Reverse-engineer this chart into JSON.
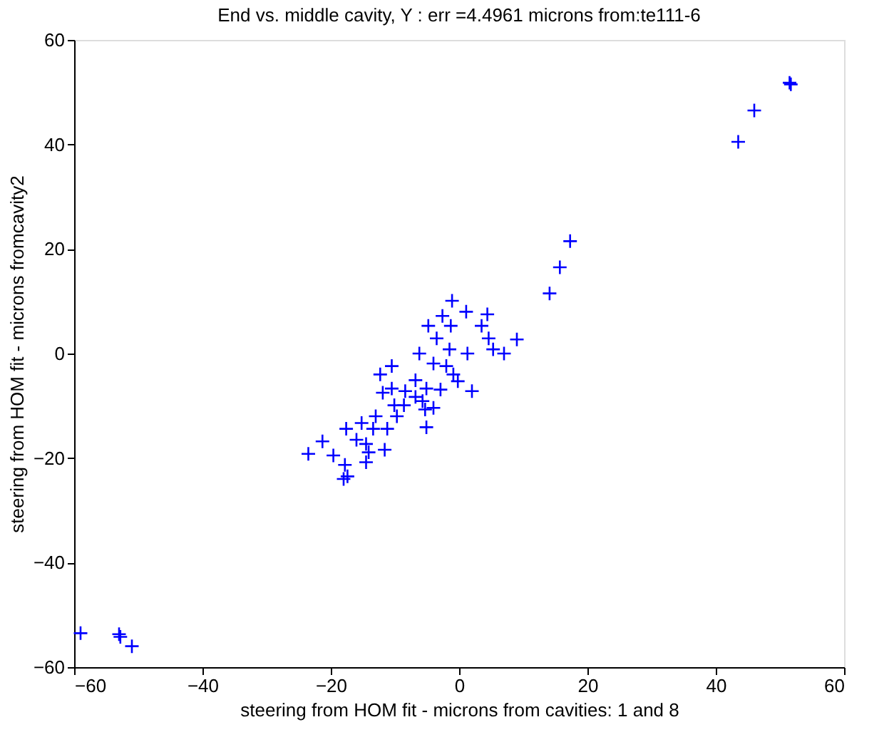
{
  "chart_data": {
    "type": "scatter",
    "title": "End vs. middle cavity, Y  : err =4.4961 microns  from:te111-6",
    "xlabel": "steering from HOM fit - microns  from cavities: 1 and 8",
    "ylabel": "steering from HOM fit - microns  fromcavity2",
    "xlim": [
      -60,
      60
    ],
    "ylim": [
      -60,
      60
    ],
    "xticks": [
      -60,
      -40,
      -20,
      0,
      20,
      40,
      60
    ],
    "yticks": [
      -60,
      -40,
      -20,
      0,
      20,
      40,
      60
    ],
    "grid": false,
    "marker": "cross",
    "series": [
      {
        "color": "#0000ff",
        "x": [
          -1.1,
          14.1,
          1.1,
          4.4,
          -2.6,
          3.5,
          -4.8,
          -1.3,
          9.0,
          4.6,
          -3.5,
          5.3,
          7.0,
          -1.5,
          1.3,
          -6.2,
          -4.0,
          -2.0,
          -10.5,
          -12.3,
          -0.9,
          -6.8,
          -0.2,
          -10.5,
          2.0,
          -2.9,
          -5.1,
          -8.4,
          -11.9,
          -6.8,
          -5.7,
          -4.0,
          -8.6,
          -10.1,
          -5.3,
          -13.0,
          -9.7,
          -15.2,
          -13.4,
          -11.2,
          -5.1,
          -17.6,
          -16.0,
          -14.5,
          -11.6,
          -21.3,
          -14.1,
          -23.5,
          -19.6,
          -14.5,
          -17.8,
          -17.4,
          -18.0,
          15.7,
          17.3,
          43.5,
          46,
          51.5,
          51.7,
          -59,
          -53,
          -52.8,
          -51
        ],
        "values": [
          10.1,
          11.5,
          8.0,
          7.5,
          7.2,
          5.3,
          5.3,
          5.3,
          2.7,
          2.9,
          2.9,
          0.8,
          0,
          0.8,
          0,
          0,
          -1.9,
          -2.4,
          -2.4,
          -4.0,
          -4.0,
          -5.1,
          -5.3,
          -6.7,
          -7.2,
          -6.9,
          -6.7,
          -7.2,
          -7.5,
          -8.3,
          -9.1,
          -10.4,
          -9.9,
          -9.9,
          -10.7,
          -12.0,
          -12.0,
          -13.3,
          -14.4,
          -14.4,
          -14.1,
          -14.4,
          -16.5,
          -17.3,
          -18.4,
          -16.8,
          -18.9,
          -19.2,
          -19.5,
          -20.8,
          -21.3,
          -23.5,
          -24.0,
          16.5,
          21.5,
          40.5,
          46.5,
          51.8,
          51.5,
          -53.5,
          -53.7,
          -54.2,
          -56
        ]
      }
    ]
  }
}
